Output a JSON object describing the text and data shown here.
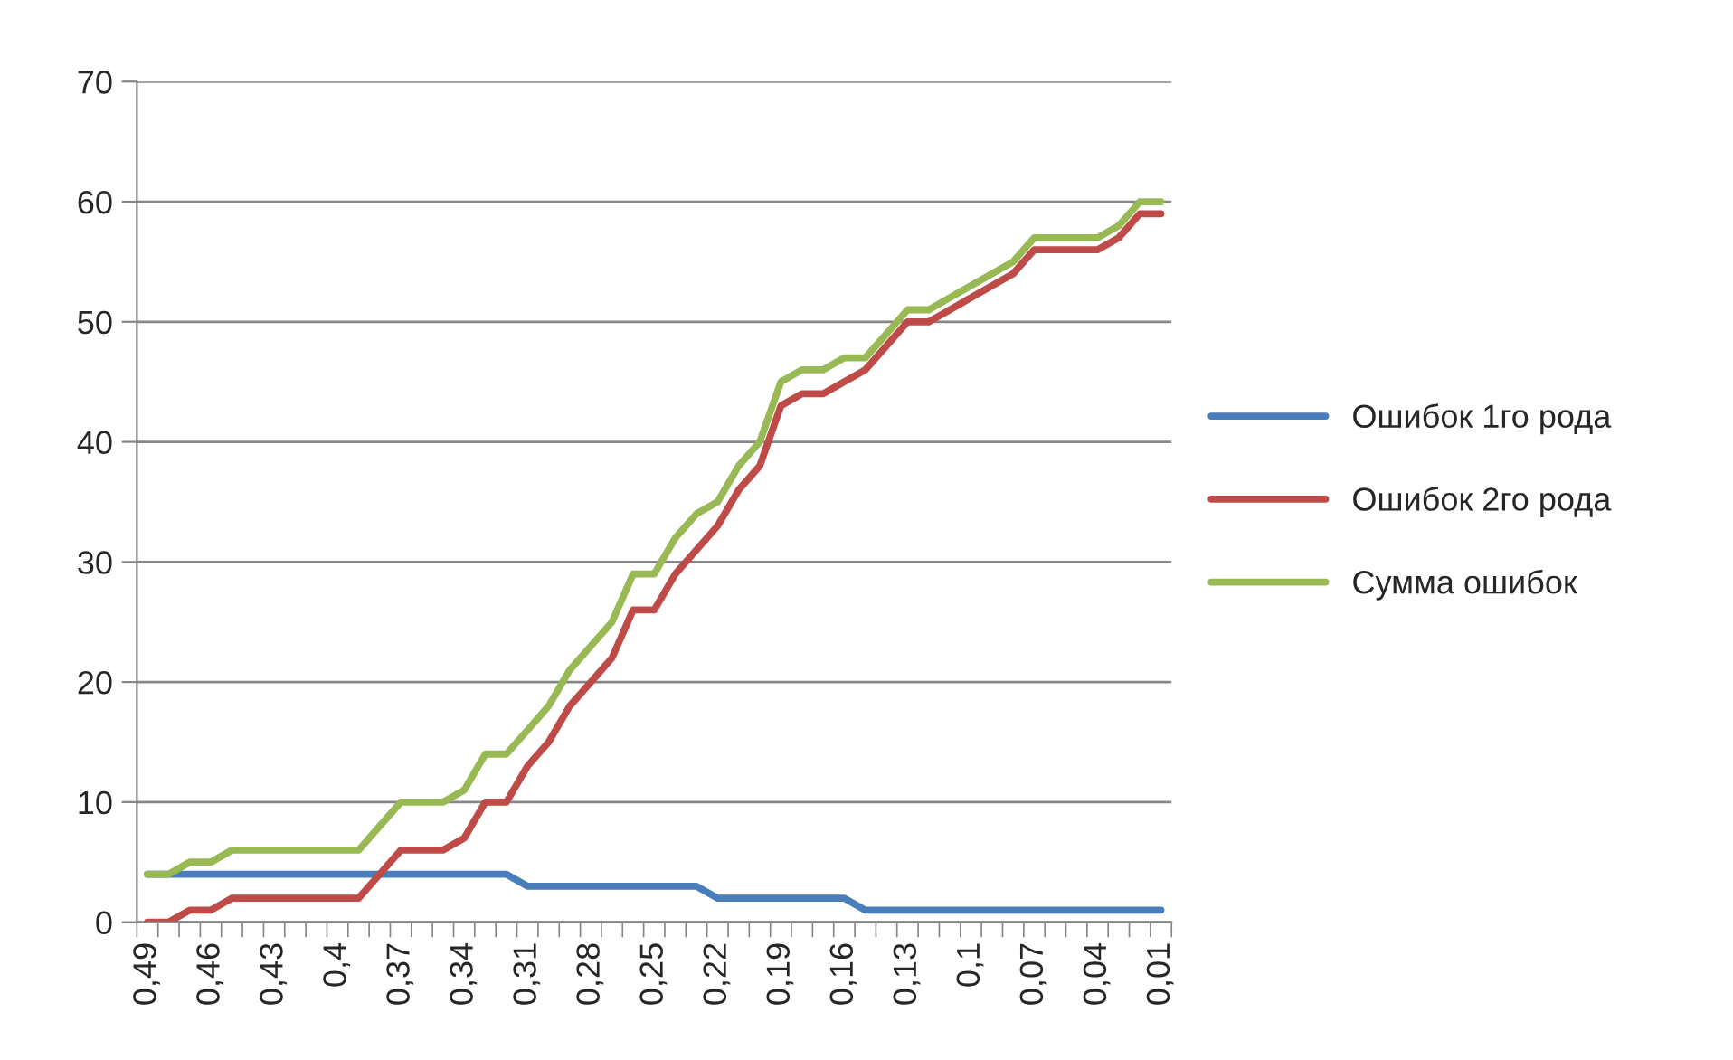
{
  "chart_data": {
    "type": "line",
    "categories": [
      "0,49",
      null,
      null,
      "0,46",
      null,
      null,
      "0,43",
      null,
      null,
      "0,4",
      null,
      null,
      "0,37",
      null,
      null,
      "0,34",
      null,
      null,
      "0,31",
      null,
      null,
      "0,28",
      null,
      null,
      "0,25",
      null,
      null,
      "0,22",
      null,
      null,
      "0,19",
      null,
      null,
      "0,16",
      null,
      null,
      "0,13",
      null,
      null,
      "0,1",
      null,
      null,
      "0,07",
      null,
      null,
      "0,04",
      null,
      null,
      "0,01"
    ],
    "series": [
      {
        "name": "Ошибок 1го рода",
        "color": "#4a7ebb",
        "values": [
          4,
          4,
          4,
          4,
          4,
          4,
          4,
          4,
          4,
          4,
          4,
          4,
          4,
          4,
          4,
          4,
          4,
          4,
          3,
          3,
          3,
          3,
          3,
          3,
          3,
          3,
          3,
          2,
          2,
          2,
          2,
          2,
          2,
          2,
          1,
          1,
          1,
          1,
          1,
          1,
          1,
          1,
          1,
          1,
          1,
          1,
          1,
          1,
          1
        ]
      },
      {
        "name": "Ошибок 2го рода",
        "color": "#be4b48",
        "values": [
          0,
          0,
          1,
          1,
          2,
          2,
          2,
          2,
          2,
          2,
          2,
          4,
          6,
          6,
          6,
          7,
          10,
          10,
          13,
          15,
          18,
          20,
          22,
          26,
          26,
          29,
          31,
          33,
          36,
          38,
          43,
          44,
          44,
          45,
          46,
          48,
          50,
          50,
          51,
          52,
          53,
          54,
          56,
          56,
          56,
          56,
          57,
          59,
          59
        ]
      },
      {
        "name": "Сумма ошибок",
        "color": "#98b954",
        "values": [
          4,
          4,
          5,
          5,
          6,
          6,
          6,
          6,
          6,
          6,
          6,
          8,
          10,
          10,
          10,
          11,
          14,
          14,
          16,
          18,
          21,
          23,
          25,
          29,
          29,
          32,
          34,
          35,
          38,
          40,
          45,
          46,
          46,
          47,
          47,
          49,
          51,
          51,
          52,
          53,
          54,
          55,
          57,
          57,
          57,
          57,
          58,
          60,
          60
        ]
      }
    ],
    "ylim": [
      0,
      70
    ],
    "yticks": [
      0,
      10,
      20,
      30,
      40,
      50,
      60,
      70
    ],
    "grid": "y",
    "legend": "right",
    "line_style": "solid",
    "marker": "none"
  }
}
